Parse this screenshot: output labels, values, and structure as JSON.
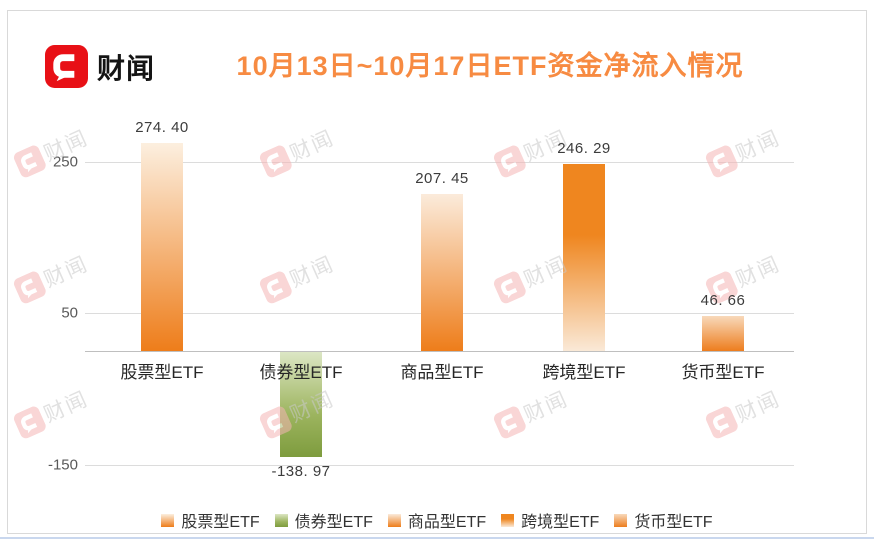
{
  "brand": {
    "name": "财闻"
  },
  "title": {
    "text": "10月13日~10月17日ETF资金净流入情况",
    "color": "#f78b42"
  },
  "watermark": {
    "text": "财闻"
  },
  "colors": {
    "title": "#f78b42",
    "logo_red": "#e81016",
    "grid": "#dcdcdc",
    "zero_axis": "#bfbfbf",
    "tick_text": "#595959",
    "value_text": "#3c3c3c",
    "category_text": "#262626",
    "watermark_logo": "#f5b5b5",
    "watermark_text": "#c9c9c9",
    "bottom_line": "#c9d7ee",
    "orange": "#ee7d1a",
    "green": "#7e9c3e"
  },
  "chart_data": {
    "type": "bar",
    "title": "10月13日~10月17日ETF资金净流入情况",
    "categories": [
      "股票型ETF",
      "债券型ETF",
      "商品型ETF",
      "跨境型ETF",
      "货币型ETF"
    ],
    "values": [
      274.4,
      -138.97,
      207.45,
      246.29,
      46.66
    ],
    "value_labels": [
      "274. 40",
      "-138. 97",
      "207. 45",
      "246. 29",
      "46. 66"
    ],
    "yticks": [
      250,
      50,
      -150
    ],
    "ytick_labels": [
      "250",
      "50",
      "-150"
    ],
    "ylim": [
      -165,
      290
    ],
    "grid": "horizontal-only",
    "legend_position": "bottom",
    "legend": [
      "股票型ETF",
      "债券型ETF",
      "商品型ETF",
      "跨境型ETF",
      "货币型ETF"
    ],
    "series_styles": [
      {
        "stops": [
          {
            "color": "#fcefdf",
            "pos": 0
          },
          {
            "color": "#f executives",
            "pos": -1
          },
          {
            "color": "#ee7d1a",
            "pos": 100
          }
        ]
      },
      {
        "stops": [
          {
            "color": "#dce6c4",
            "pos": 0
          },
          {
            "color": "#9cb45e",
            "pos": 60
          },
          {
            "color": "#7e9c3e",
            "pos": 100
          }
        ]
      },
      {
        "stops": [
          {
            "color": "#fbebdb",
            "pos": 0
          },
          {
            "color": "#ee7d1a",
            "pos": 100
          }
        ]
      },
      {
        "stops": [
          {
            "color": "#ef861f",
            "pos": 0
          },
          {
            "color": "#ef861f",
            "pos": 38
          },
          {
            "color": "#fae9d7",
            "pos": 100
          }
        ]
      },
      {
        "stops": [
          {
            "color": "#f8d9bb",
            "pos": 0
          },
          {
            "color": "#ed7d1e",
            "pos": 100
          }
        ]
      }
    ]
  }
}
